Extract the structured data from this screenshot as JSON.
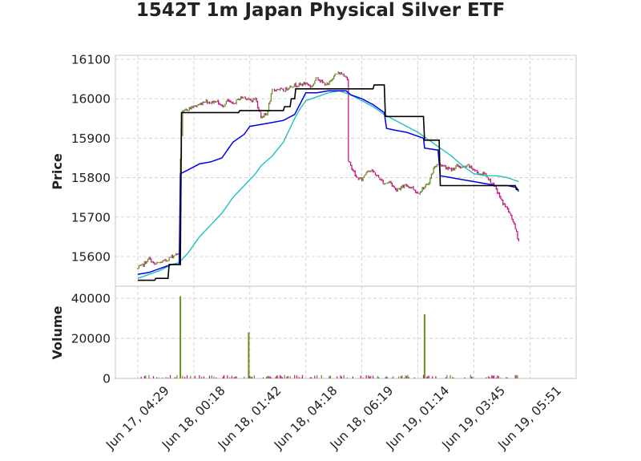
{
  "chart_data": {
    "type": "candlestick",
    "title": "1542T 1m Japan Physical Silver ETF",
    "panels": [
      {
        "name": "price",
        "ylabel": "Price",
        "ylim": [
          15525,
          16110
        ],
        "yticks": [
          15600,
          15700,
          15800,
          15900,
          16000,
          16100
        ]
      },
      {
        "name": "volume",
        "ylabel": "Volume",
        "ylim": [
          0,
          46000
        ],
        "yticks": [
          0,
          20000,
          40000
        ]
      }
    ],
    "x_ticks": [
      {
        "label": "Jun 17, 04:29",
        "i": 0
      },
      {
        "label": "Jun 18, 00:18",
        "i": 50
      },
      {
        "label": "Jun 18, 01:42",
        "i": 100
      },
      {
        "label": "Jun 18, 04:18",
        "i": 150
      },
      {
        "label": "Jun 18, 06:19",
        "i": 200
      },
      {
        "label": "Jun 19, 01:14",
        "i": 250
      },
      {
        "label": "Jun 19, 03:45",
        "i": 300
      },
      {
        "label": "Jun 19, 05:51",
        "i": 350
      }
    ],
    "n_bars": 373,
    "colors": {
      "up": "#6b8e23",
      "down": "#c71585",
      "ma_black": "#000000",
      "ma_blue": "#0000ee",
      "ma_cyan": "#20c0c0"
    },
    "close_path": [
      [
        0,
        15570
      ],
      [
        5,
        15580
      ],
      [
        10,
        15595
      ],
      [
        15,
        15580
      ],
      [
        20,
        15585
      ],
      [
        25,
        15590
      ],
      [
        30,
        15600
      ],
      [
        37,
        15610
      ],
      [
        38,
        15850
      ],
      [
        40,
        15965
      ],
      [
        45,
        15975
      ],
      [
        50,
        15980
      ],
      [
        55,
        15985
      ],
      [
        60,
        15995
      ],
      [
        65,
        15990
      ],
      [
        70,
        15995
      ],
      [
        75,
        15980
      ],
      [
        80,
        15995
      ],
      [
        85,
        15985
      ],
      [
        90,
        16000
      ],
      [
        95,
        16005
      ],
      [
        100,
        15995
      ],
      [
        105,
        16000
      ],
      [
        110,
        15955
      ],
      [
        115,
        15960
      ],
      [
        120,
        16020
      ],
      [
        125,
        16025
      ],
      [
        130,
        16020
      ],
      [
        135,
        16030
      ],
      [
        140,
        16035
      ],
      [
        145,
        16035
      ],
      [
        150,
        16040
      ],
      [
        155,
        16030
      ],
      [
        160,
        16055
      ],
      [
        165,
        16040
      ],
      [
        170,
        16035
      ],
      [
        175,
        16060
      ],
      [
        180,
        16065
      ],
      [
        185,
        16060
      ],
      [
        187,
        16050
      ],
      [
        188,
        15840
      ],
      [
        192,
        15820
      ],
      [
        195,
        15800
      ],
      [
        200,
        15795
      ],
      [
        205,
        15820
      ],
      [
        210,
        15815
      ],
      [
        215,
        15800
      ],
      [
        220,
        15785
      ],
      [
        225,
        15790
      ],
      [
        230,
        15770
      ],
      [
        235,
        15775
      ],
      [
        240,
        15780
      ],
      [
        245,
        15775
      ],
      [
        250,
        15760
      ],
      [
        255,
        15775
      ],
      [
        258,
        15780
      ],
      [
        260,
        15790
      ],
      [
        265,
        15830
      ],
      [
        270,
        15835
      ],
      [
        275,
        15825
      ],
      [
        280,
        15820
      ],
      [
        285,
        15830
      ],
      [
        290,
        15825
      ],
      [
        295,
        15830
      ],
      [
        300,
        15820
      ],
      [
        305,
        15810
      ],
      [
        310,
        15810
      ],
      [
        315,
        15790
      ],
      [
        320,
        15770
      ],
      [
        325,
        15740
      ],
      [
        330,
        15720
      ],
      [
        335,
        15690
      ],
      [
        338,
        15660
      ],
      [
        340,
        15640
      ]
    ],
    "ma_black": [
      [
        0,
        15540
      ],
      [
        15,
        15540
      ],
      [
        16,
        15545
      ],
      [
        27,
        15545
      ],
      [
        28,
        15580
      ],
      [
        38,
        15580
      ],
      [
        39,
        15965
      ],
      [
        90,
        15965
      ],
      [
        91,
        15970
      ],
      [
        130,
        15970
      ],
      [
        131,
        15980
      ],
      [
        136,
        15980
      ],
      [
        137,
        16000
      ],
      [
        140,
        16000
      ],
      [
        141,
        16025
      ],
      [
        210,
        16025
      ],
      [
        211,
        16035
      ],
      [
        220,
        16035
      ],
      [
        221,
        15955
      ],
      [
        255,
        15955
      ],
      [
        256,
        15895
      ],
      [
        269,
        15895
      ],
      [
        270,
        15780
      ],
      [
        337,
        15780
      ],
      [
        338,
        15770
      ],
      [
        340,
        15770
      ]
    ],
    "ma_blue": [
      [
        0,
        15555
      ],
      [
        10,
        15560
      ],
      [
        20,
        15570
      ],
      [
        30,
        15580
      ],
      [
        37,
        15580
      ],
      [
        38,
        15810
      ],
      [
        45,
        15820
      ],
      [
        55,
        15835
      ],
      [
        65,
        15840
      ],
      [
        75,
        15850
      ],
      [
        80,
        15870
      ],
      [
        85,
        15890
      ],
      [
        95,
        15910
      ],
      [
        100,
        15930
      ],
      [
        110,
        15935
      ],
      [
        120,
        15940
      ],
      [
        130,
        15945
      ],
      [
        140,
        15960
      ],
      [
        150,
        16015
      ],
      [
        160,
        16015
      ],
      [
        170,
        16020
      ],
      [
        180,
        16020
      ],
      [
        186,
        16020
      ],
      [
        190,
        16010
      ],
      [
        200,
        16000
      ],
      [
        210,
        15985
      ],
      [
        220,
        15965
      ],
      [
        222,
        15925
      ],
      [
        230,
        15920
      ],
      [
        240,
        15915
      ],
      [
        250,
        15905
      ],
      [
        255,
        15900
      ],
      [
        256,
        15875
      ],
      [
        268,
        15870
      ],
      [
        270,
        15805
      ],
      [
        280,
        15800
      ],
      [
        290,
        15795
      ],
      [
        300,
        15790
      ],
      [
        310,
        15785
      ],
      [
        320,
        15780
      ],
      [
        330,
        15780
      ],
      [
        338,
        15775
      ],
      [
        340,
        15765
      ]
    ],
    "ma_cyan": [
      [
        0,
        15545
      ],
      [
        20,
        15565
      ],
      [
        30,
        15580
      ],
      [
        37,
        15585
      ],
      [
        45,
        15610
      ],
      [
        55,
        15650
      ],
      [
        65,
        15680
      ],
      [
        75,
        15710
      ],
      [
        85,
        15750
      ],
      [
        95,
        15780
      ],
      [
        105,
        15810
      ],
      [
        110,
        15830
      ],
      [
        120,
        15855
      ],
      [
        130,
        15890
      ],
      [
        135,
        15920
      ],
      [
        140,
        15950
      ],
      [
        145,
        15975
      ],
      [
        150,
        15995
      ],
      [
        160,
        16005
      ],
      [
        170,
        16015
      ],
      [
        180,
        16020
      ],
      [
        190,
        16010
      ],
      [
        200,
        15995
      ],
      [
        210,
        15980
      ],
      [
        220,
        15960
      ],
      [
        230,
        15945
      ],
      [
        240,
        15930
      ],
      [
        250,
        15915
      ],
      [
        260,
        15895
      ],
      [
        270,
        15875
      ],
      [
        280,
        15855
      ],
      [
        290,
        15830
      ],
      [
        300,
        15810
      ],
      [
        310,
        15805
      ],
      [
        320,
        15805
      ],
      [
        330,
        15800
      ],
      [
        340,
        15790
      ]
    ],
    "volume_spikes": [
      {
        "i": 38,
        "value": 41000,
        "dir": "up"
      },
      {
        "i": 99,
        "value": 23000,
        "dir": "up"
      },
      {
        "i": 256,
        "value": 32000,
        "dir": "up"
      }
    ]
  }
}
